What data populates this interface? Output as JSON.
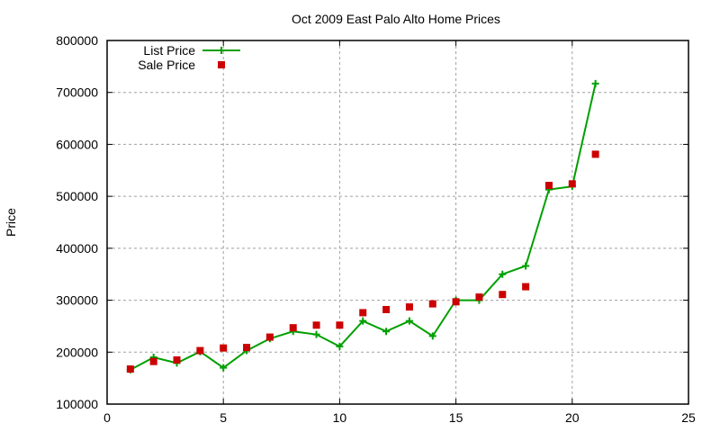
{
  "chart_data": {
    "type": "line",
    "title": "Oct 2009 East Palo Alto Home Prices",
    "xlabel": "",
    "ylabel": "Price",
    "xlim": [
      0,
      25
    ],
    "ylim": [
      100000,
      800000
    ],
    "x_ticks": [
      0,
      5,
      10,
      15,
      20,
      25
    ],
    "y_ticks": [
      100000,
      200000,
      300000,
      400000,
      500000,
      600000,
      700000,
      800000
    ],
    "grid": true,
    "legend_position": "top-left",
    "x": [
      1,
      2,
      3,
      4,
      5,
      6,
      7,
      8,
      9,
      10,
      11,
      12,
      13,
      14,
      15,
      16,
      17,
      18,
      19,
      20,
      21
    ],
    "series": [
      {
        "name": "List Price",
        "style": "lines+points",
        "marker": "plus",
        "color": "#00a000",
        "values": [
          166000,
          190000,
          179000,
          201000,
          170000,
          203000,
          226000,
          240000,
          234000,
          211000,
          260000,
          240000,
          260000,
          231000,
          300000,
          300000,
          350000,
          366000,
          513000,
          519000,
          717000
        ]
      },
      {
        "name": "Sale Price",
        "style": "points",
        "marker": "square",
        "color": "#cc0000",
        "values": [
          167500,
          182000,
          185000,
          203000,
          208000,
          209000,
          229000,
          247000,
          252000,
          252000,
          276000,
          282000,
          287000,
          293000,
          297000,
          306000,
          311000,
          326000,
          521000,
          524000,
          581000
        ]
      }
    ]
  }
}
